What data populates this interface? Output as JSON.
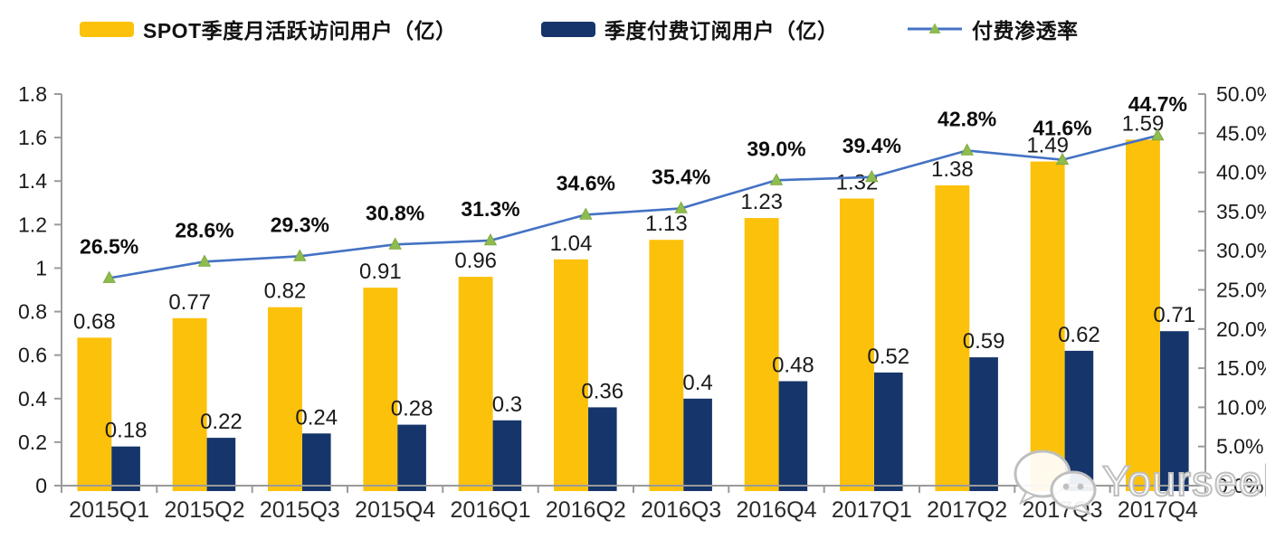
{
  "watermark": {
    "text": "Yourseeker",
    "icon": "wechat-icon"
  },
  "chart_data": {
    "type": "bar",
    "subtype": "combo-bar-line-dual-axis",
    "title": "",
    "categories": [
      "2015Q1",
      "2015Q2",
      "2015Q3",
      "2015Q4",
      "2016Q1",
      "2016Q2",
      "2016Q3",
      "2016Q4",
      "2017Q1",
      "2017Q2",
      "2017Q3",
      "2017Q4"
    ],
    "series": [
      {
        "name": "SPOT季度月活跃访问用户（亿）",
        "type": "bar",
        "axis": "left",
        "color": "#FCC10A",
        "values": [
          0.68,
          0.77,
          0.82,
          0.91,
          0.96,
          1.04,
          1.13,
          1.23,
          1.32,
          1.38,
          1.49,
          1.59
        ],
        "labels": [
          "0.68",
          "0.77",
          "0.82",
          "0.91",
          "0.96",
          "1.04",
          "1.13",
          "1.23",
          "1.32",
          "1.38",
          "1.49",
          "1.59"
        ]
      },
      {
        "name": "季度付费订阅用户（亿）",
        "type": "bar",
        "axis": "left",
        "color": "#16356B",
        "values": [
          0.18,
          0.22,
          0.24,
          0.28,
          0.3,
          0.36,
          0.4,
          0.48,
          0.52,
          0.59,
          0.62,
          0.71
        ],
        "labels": [
          "0.18",
          "0.22",
          "0.24",
          "0.28",
          "0.3",
          "0.36",
          "0.4",
          "0.48",
          "0.52",
          "0.59",
          "0.62",
          "0.71"
        ]
      },
      {
        "name": "付费渗透率",
        "type": "line",
        "axis": "right",
        "color": "#4472C4",
        "marker": "triangle",
        "marker_color": "#8FBC4E",
        "values": [
          26.5,
          28.6,
          29.3,
          30.8,
          31.3,
          34.6,
          35.4,
          39.0,
          39.4,
          42.8,
          41.6,
          44.7
        ],
        "labels": [
          "26.5%",
          "28.6%",
          "29.3%",
          "30.8%",
          "31.3%",
          "34.6%",
          "35.4%",
          "39.0%",
          "39.4%",
          "42.8%",
          "41.6%",
          "44.7%"
        ]
      }
    ],
    "left_axis": {
      "min": 0,
      "max": 1.8,
      "ticks": [
        "0",
        "0.2",
        "0.4",
        "0.6",
        "0.8",
        "1",
        "1.2",
        "1.4",
        "1.6",
        "1.8"
      ]
    },
    "right_axis": {
      "min": 0,
      "max": 50,
      "ticks": [
        "0.0%",
        "5.0%",
        "10.0%",
        "15.0%",
        "20.0%",
        "25.0%",
        "30.0%",
        "35.0%",
        "40.0%",
        "45.0%",
        "50.0%"
      ]
    },
    "legend_position": "top",
    "grid": false,
    "axis_color": "#9A9A9A",
    "text_color": "#1A1A1A",
    "xlabel": "",
    "ylabel": ""
  }
}
